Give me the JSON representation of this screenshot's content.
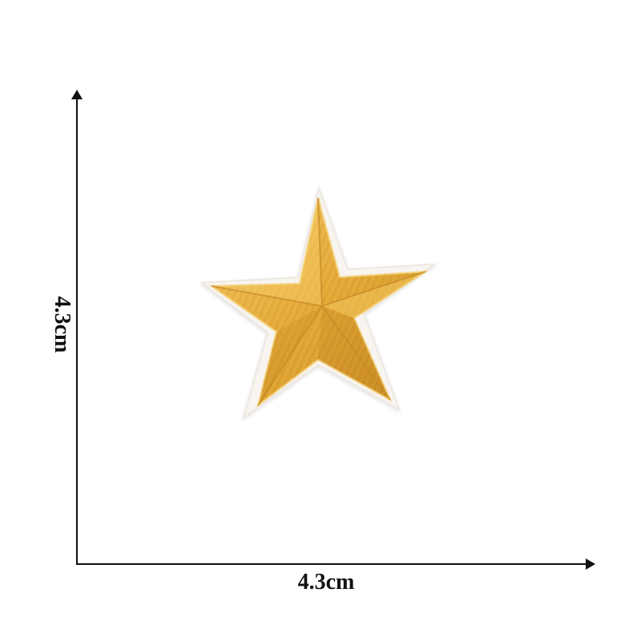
{
  "dimensions": {
    "height_label": "4.3cm",
    "width_label": "4.3cm"
  },
  "product": {
    "name": "star-patch",
    "colors": {
      "gold": "#e6a93a",
      "gold_dark": "#c88a22",
      "gold_light": "#f0c15a",
      "border": "#f7f3ef",
      "background": "#ffffff"
    }
  }
}
